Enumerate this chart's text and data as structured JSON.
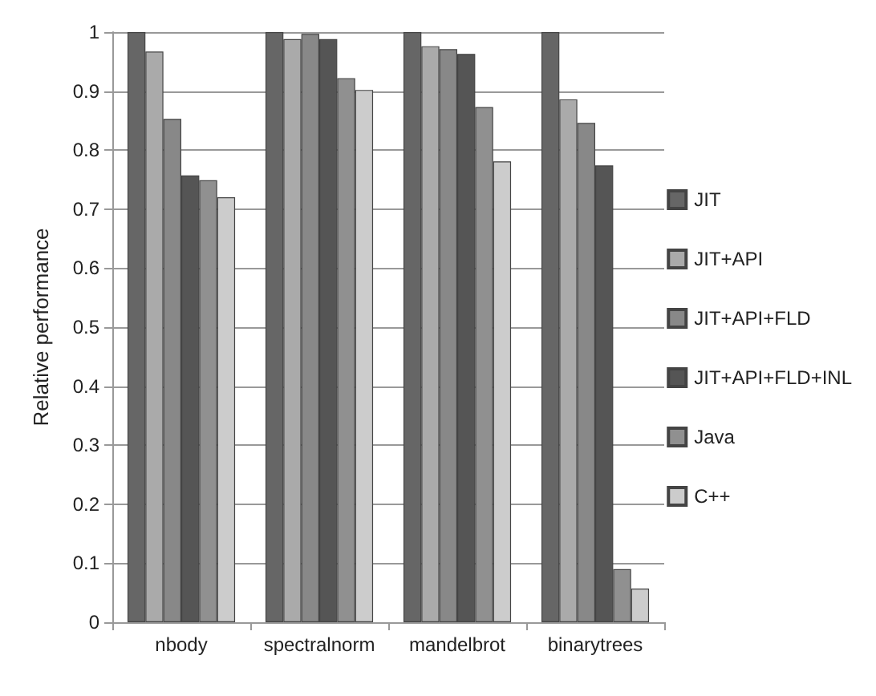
{
  "chart_data": {
    "type": "bar",
    "ylabel": "Relative performance",
    "categories": [
      "nbody",
      "spectralnorm",
      "mandelbrot",
      "binarytrees"
    ],
    "series": [
      {
        "name": "JIT",
        "color": "#666666",
        "values": [
          1,
          1,
          1,
          1
        ]
      },
      {
        "name": "JIT+API",
        "color": "#aaaaaa",
        "values": [
          0.967,
          0.988,
          0.976,
          0.886
        ]
      },
      {
        "name": "JIT+API+FLD",
        "color": "#888888",
        "values": [
          0.853,
          0.997,
          0.971,
          0.846
        ]
      },
      {
        "name": "JIT+API+FLD+INL",
        "color": "#555555",
        "values": [
          0.757,
          0.988,
          0.963,
          0.774
        ]
      },
      {
        "name": "Java",
        "color": "#909090",
        "values": [
          0.749,
          0.922,
          0.873,
          0.09
        ]
      },
      {
        "name": "C++",
        "color": "#cccccc",
        "values": [
          0.72,
          0.902,
          0.781,
          0.057
        ]
      }
    ],
    "ylim": [
      0,
      1
    ],
    "yticks": [
      0,
      0.1,
      0.2,
      0.3,
      0.4,
      0.5,
      0.6,
      0.7,
      0.8,
      0.9,
      1
    ],
    "grid": "y",
    "legend": "right"
  }
}
